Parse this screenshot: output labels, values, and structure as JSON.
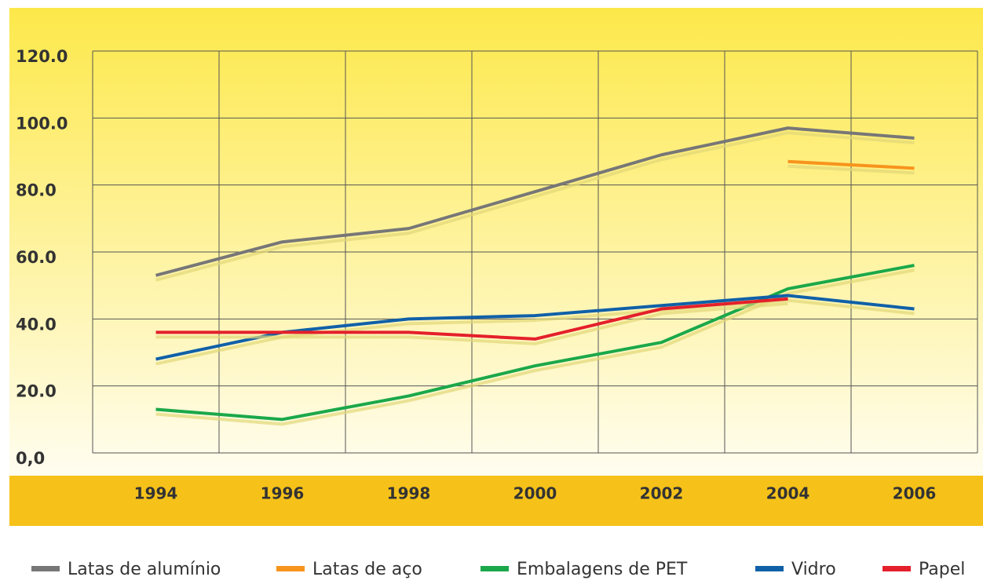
{
  "chart_data": {
    "type": "line",
    "categories": [
      "1994",
      "1996",
      "1998",
      "2000",
      "2002",
      "2004",
      "2006"
    ],
    "series": [
      {
        "name": "Latas de alumínio",
        "color": "#777777",
        "values": [
          53,
          63,
          67,
          78,
          89,
          97,
          94
        ]
      },
      {
        "name": "Latas de aço",
        "color": "#f7941d",
        "values": [
          null,
          null,
          null,
          null,
          null,
          87,
          85
        ]
      },
      {
        "name": "Embalagens de PET",
        "color": "#1ba84a",
        "values": [
          13,
          10,
          17,
          26,
          33,
          49,
          56
        ]
      },
      {
        "name": "Vidro",
        "color": "#1060a8",
        "values": [
          28,
          36,
          40,
          41,
          44,
          47,
          43
        ]
      },
      {
        "name": "Papel",
        "color": "#e4202a",
        "values": [
          36,
          36,
          36,
          34,
          43,
          46,
          null
        ]
      }
    ],
    "ylim": [
      0,
      120
    ],
    "yticks": [
      {
        "value": 0,
        "label": "0,0"
      },
      {
        "value": 20,
        "label": "20.0"
      },
      {
        "value": 40,
        "label": "40.0"
      },
      {
        "value": 60,
        "label": "60.0"
      },
      {
        "value": 80,
        "label": "80.0"
      },
      {
        "value": 100,
        "label": "100.0"
      },
      {
        "value": 120,
        "label": "120.0"
      }
    ],
    "grid": true
  }
}
